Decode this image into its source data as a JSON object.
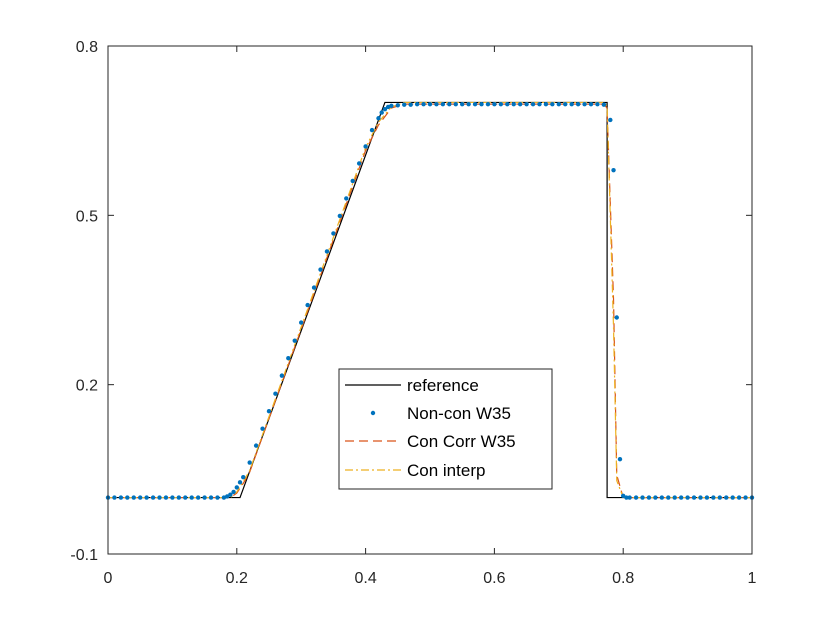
{
  "chart_data": {
    "type": "line",
    "title": "",
    "xlabel": "",
    "ylabel": "",
    "xlim": [
      0,
      1
    ],
    "ylim": [
      -0.1,
      0.8
    ],
    "xticks": [
      0,
      0.2,
      0.4,
      0.6,
      0.8,
      1
    ],
    "xtick_labels": [
      "0",
      "0.2",
      "0.4",
      "0.6",
      "0.8",
      "1"
    ],
    "yticks": [
      -0.1,
      0.2,
      0.5,
      0.8
    ],
    "ytick_labels": [
      "-0.1",
      "0.2",
      "0.5",
      "0.8"
    ],
    "grid": false,
    "legend_position": "lower-center",
    "series": [
      {
        "name": "reference",
        "style": "solid",
        "color": "#000000",
        "x": [
          0,
          0.205,
          0.43,
          0.775,
          0.775,
          1
        ],
        "y": [
          0,
          0,
          0.7,
          0.7,
          0,
          0
        ]
      },
      {
        "name": "Non-con W35",
        "style": "dots",
        "color": "#0072BD",
        "x": [
          0,
          0.01,
          0.02,
          0.03,
          0.04,
          0.05,
          0.06,
          0.07,
          0.08,
          0.09,
          0.1,
          0.11,
          0.12,
          0.13,
          0.14,
          0.15,
          0.16,
          0.17,
          0.18,
          0.185,
          0.19,
          0.195,
          0.2,
          0.205,
          0.21,
          0.22,
          0.23,
          0.24,
          0.25,
          0.26,
          0.27,
          0.28,
          0.29,
          0.3,
          0.31,
          0.32,
          0.33,
          0.34,
          0.35,
          0.36,
          0.37,
          0.38,
          0.39,
          0.4,
          0.41,
          0.42,
          0.425,
          0.43,
          0.435,
          0.44,
          0.45,
          0.46,
          0.47,
          0.48,
          0.49,
          0.5,
          0.51,
          0.52,
          0.53,
          0.54,
          0.55,
          0.56,
          0.57,
          0.58,
          0.59,
          0.6,
          0.61,
          0.62,
          0.63,
          0.64,
          0.65,
          0.66,
          0.67,
          0.68,
          0.69,
          0.7,
          0.71,
          0.72,
          0.73,
          0.74,
          0.75,
          0.76,
          0.77,
          0.78,
          0.785,
          0.79,
          0.795,
          0.8,
          0.805,
          0.81,
          0.82,
          0.83,
          0.84,
          0.85,
          0.86,
          0.87,
          0.88,
          0.89,
          0.9,
          0.91,
          0.92,
          0.93,
          0.94,
          0.95,
          0.96,
          0.97,
          0.98,
          0.99,
          1
        ],
        "y": [
          0,
          0,
          0,
          0,
          0,
          0,
          0,
          0,
          0,
          0,
          0,
          0,
          0,
          0,
          0,
          0,
          0,
          0,
          0,
          0.002,
          0.005,
          0.01,
          0.018,
          0.027,
          0.036,
          0.062,
          0.092,
          0.122,
          0.153,
          0.184,
          0.216,
          0.247,
          0.278,
          0.31,
          0.341,
          0.372,
          0.404,
          0.436,
          0.468,
          0.499,
          0.53,
          0.561,
          0.592,
          0.622,
          0.651,
          0.672,
          0.682,
          0.688,
          0.692,
          0.694,
          0.695,
          0.696,
          0.696,
          0.697,
          0.697,
          0.697,
          0.697,
          0.697,
          0.697,
          0.697,
          0.697,
          0.697,
          0.697,
          0.697,
          0.697,
          0.697,
          0.697,
          0.697,
          0.697,
          0.697,
          0.697,
          0.697,
          0.697,
          0.697,
          0.697,
          0.697,
          0.697,
          0.697,
          0.697,
          0.697,
          0.697,
          0.697,
          0.696,
          0.669,
          0.58,
          0.319,
          0.068,
          0.003,
          0,
          0,
          0,
          0,
          0,
          0,
          0,
          0,
          0,
          0,
          0,
          0,
          0,
          0,
          0,
          0,
          0,
          0,
          0,
          0,
          0
        ]
      },
      {
        "name": "Con Corr W35",
        "style": "dashed",
        "color": "#D95319",
        "x": [
          0,
          0.19,
          0.2,
          0.21,
          0.22,
          0.4,
          0.42,
          0.44,
          0.46,
          0.77,
          0.775,
          0.785,
          0.79,
          0.8,
          1
        ],
        "y": [
          0,
          0,
          0.008,
          0.025,
          0.045,
          0.615,
          0.66,
          0.69,
          0.697,
          0.697,
          0.69,
          0.35,
          0.04,
          0,
          0
        ]
      },
      {
        "name": "Con interp",
        "style": "dashdot",
        "color": "#EDB120",
        "x": [
          0,
          0.19,
          0.2,
          0.21,
          0.22,
          0.4,
          0.42,
          0.44,
          0.46,
          0.77,
          0.775,
          0.785,
          0.79,
          0.8,
          1
        ],
        "y": [
          0,
          0,
          0.01,
          0.028,
          0.048,
          0.62,
          0.665,
          0.692,
          0.7,
          0.7,
          0.693,
          0.3,
          0.03,
          0,
          0
        ]
      }
    ]
  }
}
